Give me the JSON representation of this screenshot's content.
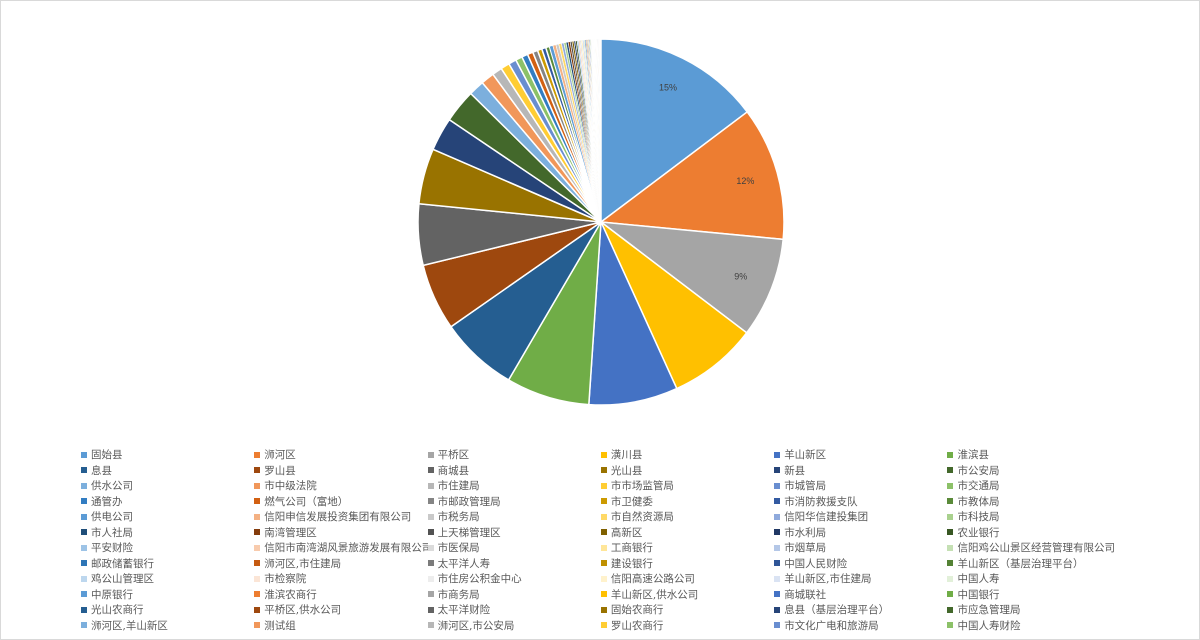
{
  "chart_data": {
    "type": "pie",
    "legend_position": "bottom",
    "data_labels": [
      "15%",
      "12%",
      "9%"
    ],
    "slices": [
      {
        "label": "固始县",
        "value": 15.0,
        "color": "#5b9bd5"
      },
      {
        "label": "浉河区",
        "value": 12.0,
        "color": "#ed7d31"
      },
      {
        "label": "平桥区",
        "value": 9.0,
        "color": "#a5a5a5"
      },
      {
        "label": "潢川县",
        "value": 8.0,
        "color": "#ffc000"
      },
      {
        "label": "羊山新区",
        "value": 8.0,
        "color": "#4472c4"
      },
      {
        "label": "淮滨县",
        "value": 7.5,
        "color": "#70ad47"
      },
      {
        "label": "息县",
        "value": 7.0,
        "color": "#255e91"
      },
      {
        "label": "罗山县",
        "value": 6.0,
        "color": "#9e480e"
      },
      {
        "label": "商城县",
        "value": 5.5,
        "color": "#636363"
      },
      {
        "label": "光山县",
        "value": 5.0,
        "color": "#997300"
      },
      {
        "label": "新县",
        "value": 3.0,
        "color": "#264478"
      },
      {
        "label": "市公安局",
        "value": 3.0,
        "color": "#43682b"
      },
      {
        "label": "供水公司",
        "value": 1.4,
        "color": "#7cafdd"
      },
      {
        "label": "市中级法院",
        "value": 1.2,
        "color": "#f1975a"
      },
      {
        "label": "市住建局",
        "value": 0.9,
        "color": "#b7b7b7"
      },
      {
        "label": "市市场监管局",
        "value": 0.8,
        "color": "#ffcd33"
      },
      {
        "label": "市城管局",
        "value": 0.7,
        "color": "#698ed0"
      },
      {
        "label": "市交通局",
        "value": 0.6,
        "color": "#8cc168"
      },
      {
        "label": "通管办",
        "value": 0.55,
        "color": "#327dc2"
      },
      {
        "label": "燃气公司（富地）",
        "value": 0.5,
        "color": "#d26012"
      },
      {
        "label": "市邮政管理局",
        "value": 0.45,
        "color": "#848484"
      },
      {
        "label": "市卫健委",
        "value": 0.4,
        "color": "#cc9a00"
      },
      {
        "label": "市消防救援支队",
        "value": 0.37,
        "color": "#335aa1"
      },
      {
        "label": "市教体局",
        "value": 0.34,
        "color": "#5a8a39"
      },
      {
        "label": "供电公司",
        "value": 0.31,
        "color": "#5b9bd5"
      },
      {
        "label": "信阳申信发展投资集团有限公司",
        "value": 0.28,
        "color": "#f4b183"
      },
      {
        "label": "市税务局",
        "value": 0.26,
        "color": "#c9c9c9"
      },
      {
        "label": "市自然资源局",
        "value": 0.24,
        "color": "#ffd966"
      },
      {
        "label": "信阳华信建投集团",
        "value": 0.22,
        "color": "#8faadc"
      },
      {
        "label": "市科技局",
        "value": 0.2,
        "color": "#a9d18e"
      },
      {
        "label": "市人社局",
        "value": 0.19,
        "color": "#1f4e79"
      },
      {
        "label": "南湾管理区",
        "value": 0.18,
        "color": "#843c0c"
      },
      {
        "label": "上天梯管理区",
        "value": 0.17,
        "color": "#525252"
      },
      {
        "label": "高新区",
        "value": 0.16,
        "color": "#7f6000"
      },
      {
        "label": "市水利局",
        "value": 0.15,
        "color": "#203864"
      },
      {
        "label": "农业银行",
        "value": 0.14,
        "color": "#385723"
      },
      {
        "label": "平安财险",
        "value": 0.13,
        "color": "#9dc3e6"
      },
      {
        "label": "信阳市南湾湖风景旅游发展有限公司",
        "value": 0.12,
        "color": "#f8cbad"
      },
      {
        "label": "市医保局",
        "value": 0.12,
        "color": "#dbdbdb"
      },
      {
        "label": "工商银行",
        "value": 0.11,
        "color": "#ffe699"
      },
      {
        "label": "市烟草局",
        "value": 0.11,
        "color": "#b4c7e7"
      },
      {
        "label": "信阳鸡公山景区经营管理有限公司",
        "value": 0.1,
        "color": "#c5e0b4"
      },
      {
        "label": "邮政储蓄银行",
        "value": 0.1,
        "color": "#2e75b6"
      },
      {
        "label": "浉河区,市住建局",
        "value": 0.09,
        "color": "#c55a11"
      },
      {
        "label": "太平洋人寿",
        "value": 0.09,
        "color": "#7b7b7b"
      },
      {
        "label": "建设银行",
        "value": 0.08,
        "color": "#bf9000"
      },
      {
        "label": "中国人民财险",
        "value": 0.08,
        "color": "#2f5597"
      },
      {
        "label": "羊山新区（基层治理平台）",
        "value": 0.07,
        "color": "#548235"
      },
      {
        "label": "鸡公山管理区",
        "value": 0.07,
        "color": "#bdd7ee"
      },
      {
        "label": "市检察院",
        "value": 0.06,
        "color": "#fbe5d6"
      },
      {
        "label": "市住房公积金中心",
        "value": 0.06,
        "color": "#ededed"
      },
      {
        "label": "信阳高速公路公司",
        "value": 0.06,
        "color": "#fff2cc"
      },
      {
        "label": "羊山新区,市住建局",
        "value": 0.05,
        "color": "#dae3f3"
      },
      {
        "label": "中国人寿",
        "value": 0.05,
        "color": "#e2f0d9"
      },
      {
        "label": "中原银行",
        "value": 0.05,
        "color": "#5b9bd5"
      },
      {
        "label": "淮滨农商行",
        "value": 0.05,
        "color": "#ed7d31"
      },
      {
        "label": "市商务局",
        "value": 0.04,
        "color": "#a5a5a5"
      },
      {
        "label": "羊山新区,供水公司",
        "value": 0.04,
        "color": "#ffc000"
      },
      {
        "label": "商城联社",
        "value": 0.04,
        "color": "#4472c4"
      },
      {
        "label": "中国银行",
        "value": 0.04,
        "color": "#70ad47"
      },
      {
        "label": "光山农商行",
        "value": 0.04,
        "color": "#255e91"
      },
      {
        "label": "平桥区,供水公司",
        "value": 0.03,
        "color": "#9e480e"
      },
      {
        "label": "太平洋财险",
        "value": 0.03,
        "color": "#636363"
      },
      {
        "label": "固始农商行",
        "value": 0.03,
        "color": "#997300"
      },
      {
        "label": "息县（基层治理平台）",
        "value": 0.03,
        "color": "#264478"
      },
      {
        "label": "市应急管理局",
        "value": 0.03,
        "color": "#43682b"
      },
      {
        "label": "浉河区,羊山新区",
        "value": 0.03,
        "color": "#7cafdd"
      },
      {
        "label": "测试组",
        "value": 0.02,
        "color": "#f1975a"
      },
      {
        "label": "浉河区,市公安局",
        "value": 0.02,
        "color": "#b7b7b7"
      },
      {
        "label": "罗山农商行",
        "value": 0.02,
        "color": "#ffcd33"
      },
      {
        "label": "市文化广电和旅游局",
        "value": 0.02,
        "color": "#698ed0"
      },
      {
        "label": "中国人寿财险",
        "value": 0.02,
        "color": "#8cc168"
      }
    ]
  }
}
